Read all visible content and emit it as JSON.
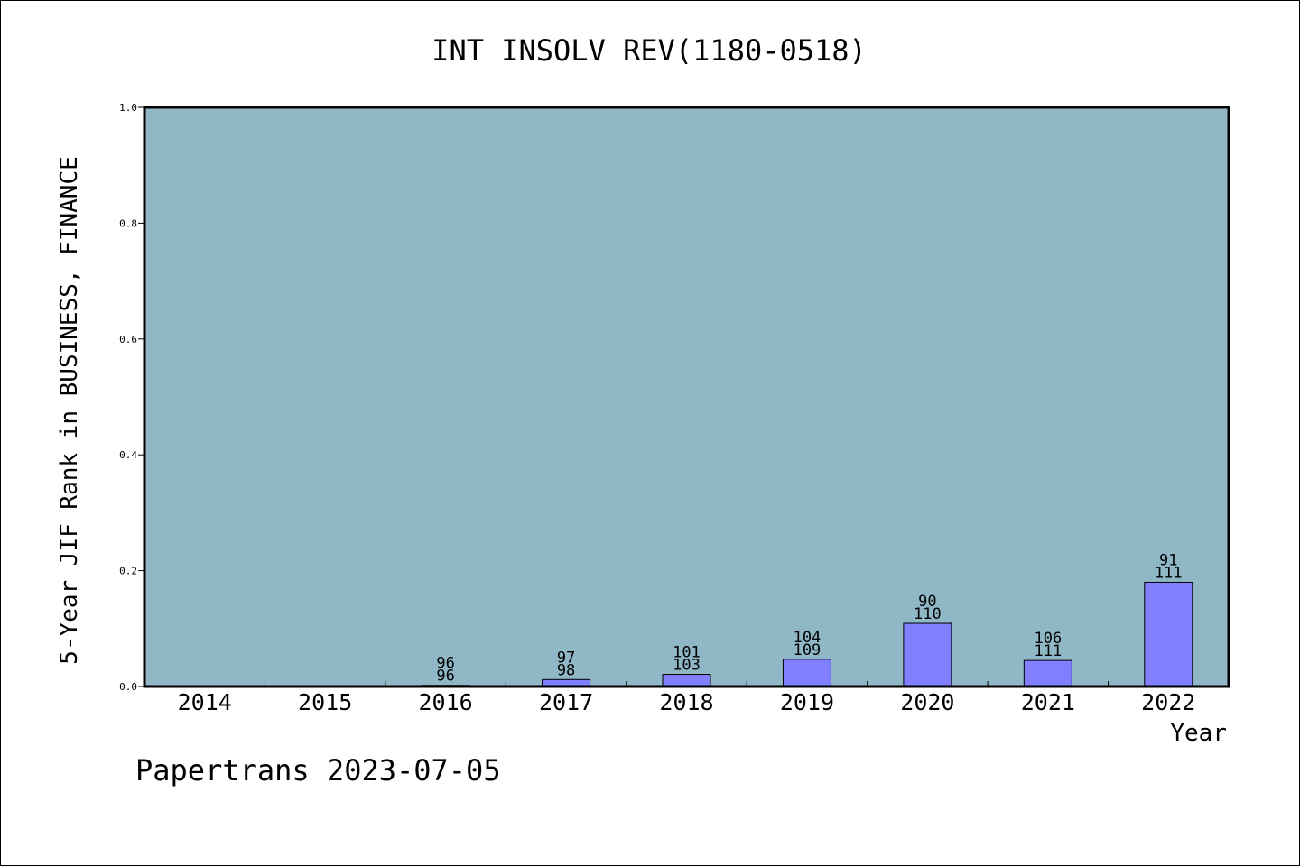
{
  "chart_data": {
    "type": "bar",
    "title": "INT INSOLV REV(1180-0518)",
    "xlabel": "Year",
    "ylabel": "5-Year JIF Rank in BUSINESS, FINANCE",
    "ylim": [
      0,
      1.0
    ],
    "yticks": [
      "0.0",
      "0.2",
      "0.4",
      "0.6",
      "0.8",
      "1.0"
    ],
    "categories": [
      "2014",
      "2015",
      "2016",
      "2017",
      "2018",
      "2019",
      "2020",
      "2021",
      "2022"
    ],
    "values": [
      null,
      null,
      0.002,
      0.012,
      0.021,
      0.047,
      0.109,
      0.045,
      0.18
    ],
    "labels_top": [
      "",
      "",
      "96",
      "97",
      "101",
      "104",
      "90",
      "106",
      "91"
    ],
    "labels_bottom": [
      "",
      "",
      "96",
      "98",
      "103",
      "109",
      "110",
      "111",
      "111"
    ],
    "grid": false,
    "colors": {
      "plot_background": "#8fb7c5",
      "bar_fill": "#8080ff",
      "bar_stroke": "#000000",
      "frame": "#000000"
    }
  },
  "footer": {
    "credit": "Papertrans 2023-07-05"
  }
}
